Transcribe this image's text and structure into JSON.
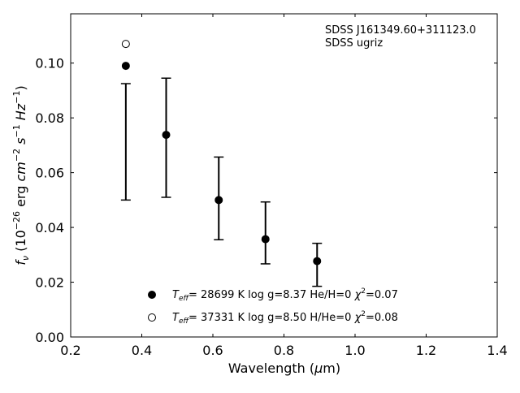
{
  "chart_data": {
    "type": "scatter",
    "title": "",
    "xlabel": "Wavelength (μm)",
    "ylabel": "f_ν (10^-26 erg cm^-2 s^-1 Hz^-1)",
    "xlim": [
      0.2,
      1.4
    ],
    "ylim": [
      0.0,
      0.118
    ],
    "x_ticks": [
      "0.2",
      "0.4",
      "0.6",
      "0.8",
      "1.0",
      "1.2",
      "1.4"
    ],
    "y_ticks": [
      "0.00",
      "0.02",
      "0.04",
      "0.06",
      "0.08",
      "0.10"
    ],
    "x_tick_values": [
      0.2,
      0.4,
      0.6,
      0.8,
      1.0,
      1.2,
      1.4
    ],
    "y_tick_values": [
      0.0,
      0.02,
      0.04,
      0.06,
      0.08,
      0.1
    ],
    "annotation": [
      "SDSS J161349.60+311123.0",
      "SDSS ugriz"
    ],
    "observed": {
      "name": "SDSS ugriz",
      "x": [
        0.3551,
        0.4686,
        0.6166,
        0.748,
        0.8932
      ],
      "y_low": [
        0.05,
        0.051,
        0.0355,
        0.0267,
        0.0185
      ],
      "y_high": [
        0.0925,
        0.0945,
        0.0657,
        0.0493,
        0.0342
      ]
    },
    "series": [
      {
        "name": "Teff= 28699 K  log g=8.37  He/H=0  χ2=0.07",
        "marker": "filled",
        "x": [
          0.3551,
          0.4686,
          0.6166,
          0.748,
          0.8932
        ],
        "y": [
          0.099,
          0.0738,
          0.05,
          0.0357,
          0.0277
        ]
      },
      {
        "name": "Teff= 37331 K  log g=8.50  H/He=0  χ2=0.08",
        "marker": "open",
        "x": [
          0.3551
        ],
        "y": [
          0.107
        ]
      }
    ],
    "legend_placement": "lower-center",
    "grid": false
  },
  "labels": {
    "xlabel_main": "Wavelength (",
    "xlabel_mu": "μ",
    "xlabel_unit": "m)",
    "ylabel_f": "f",
    "ylabel_nu": "ν",
    "ylabel_open": " (10",
    "ylabel_exp1": "−26",
    "ylabel_erg": " erg ",
    "ylabel_cm": "cm",
    "ylabel_exp2": "−2",
    "ylabel_s": " s",
    "ylabel_exp3": "−1",
    "ylabel_hz": " Hz",
    "ylabel_exp4": "−1",
    "ylabel_close": ")",
    "annotation_line1": "SDSS J161349.60+311123.0",
    "annotation_line2": "SDSS ugriz",
    "legend1_t": "T",
    "legend1_eff": "eff",
    "legend1_rest": "= 28699 K  log g=8.37  He/H=0  ",
    "legend1_chi": "χ",
    "legend1_sup": "2",
    "legend1_val": "=0.07",
    "legend2_t": "T",
    "legend2_eff": "eff",
    "legend2_rest": "= 37331 K  log g=8.50  H/He=0  ",
    "legend2_chi": "χ",
    "legend2_sup": "2",
    "legend2_val": "=0.08"
  }
}
